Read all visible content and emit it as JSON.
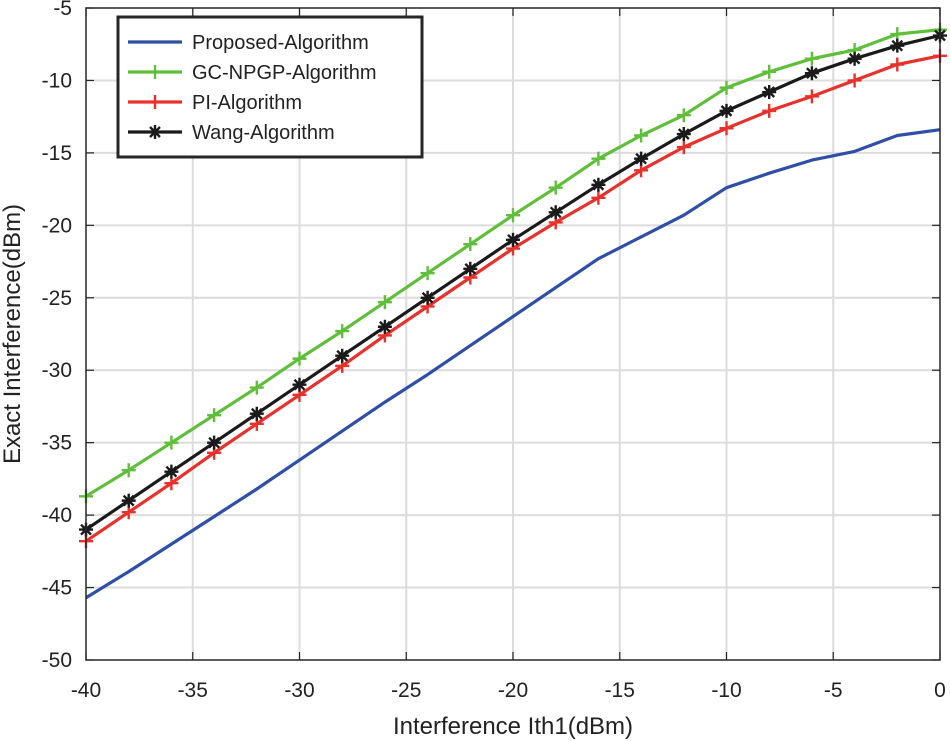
{
  "chart_data": {
    "type": "line",
    "title": "",
    "xlabel": "Interference Ith1(dBm)",
    "ylabel": "Exact Interference(dBm)",
    "xlim": [
      -40,
      0
    ],
    "ylim": [
      -50,
      -5
    ],
    "xticks": [
      -40,
      -35,
      -30,
      -25,
      -20,
      -15,
      -10,
      -5,
      0
    ],
    "xtick_labels": [
      "-40",
      "-35",
      "-30",
      "-25",
      "-20",
      "-15",
      "-10",
      "-5",
      "0"
    ],
    "yticks": [
      -50,
      -45,
      -40,
      -35,
      -30,
      -25,
      -20,
      -15,
      -10,
      -5
    ],
    "ytick_labels": [
      "-50",
      "-45",
      "-40",
      "-35",
      "-30",
      "-25",
      "-20",
      "-15",
      "-10",
      "-5"
    ],
    "grid": true,
    "legend_position": "top-left",
    "series": [
      {
        "name": "Proposed-Algorithm",
        "color": "#2f4ea8",
        "marker": "none",
        "x": [
          -40,
          -38,
          -36,
          -34,
          -32,
          -30,
          -28,
          -26,
          -24,
          -22,
          -20,
          -18,
          -16,
          -14,
          -12,
          -10,
          -8,
          -6,
          -4,
          -2,
          0
        ],
        "values": [
          -45.7,
          -43.9,
          -42.0,
          -40.1,
          -38.2,
          -36.2,
          -34.2,
          -32.2,
          -30.3,
          -28.3,
          -26.3,
          -24.3,
          -22.3,
          -20.8,
          -19.3,
          -17.4,
          -16.4,
          -15.5,
          -14.9,
          -13.8,
          -13.4
        ]
      },
      {
        "name": "GC-NPGP-Algorithm",
        "color": "#5fbf3a",
        "marker": "plus",
        "x": [
          -40,
          -38,
          -36,
          -34,
          -32,
          -30,
          -28,
          -26,
          -24,
          -22,
          -20,
          -18,
          -16,
          -14,
          -12,
          -10,
          -8,
          -6,
          -4,
          -2,
          0
        ],
        "values": [
          -38.7,
          -36.9,
          -35.0,
          -33.1,
          -31.2,
          -29.2,
          -27.3,
          -25.3,
          -23.3,
          -21.3,
          -19.3,
          -17.4,
          -15.4,
          -13.8,
          -12.4,
          -10.5,
          -9.4,
          -8.5,
          -7.9,
          -6.8,
          -6.5
        ]
      },
      {
        "name": "PI-Algorithm",
        "color": "#e8312a",
        "marker": "plus",
        "x": [
          -40,
          -38,
          -36,
          -34,
          -32,
          -30,
          -28,
          -26,
          -24,
          -22,
          -20,
          -18,
          -16,
          -14,
          -12,
          -10,
          -8,
          -6,
          -4,
          -2,
          0
        ],
        "values": [
          -41.8,
          -39.8,
          -37.8,
          -35.7,
          -33.7,
          -31.7,
          -29.7,
          -27.6,
          -25.6,
          -23.6,
          -21.6,
          -19.8,
          -18.1,
          -16.2,
          -14.6,
          -13.3,
          -12.1,
          -11.1,
          -10.0,
          -8.9,
          -8.3
        ]
      },
      {
        "name": "Wang-Algorithm",
        "color": "#1a1a1a",
        "marker": "star",
        "x": [
          -40,
          -38,
          -36,
          -34,
          -32,
          -30,
          -28,
          -26,
          -24,
          -22,
          -20,
          -18,
          -16,
          -14,
          -12,
          -10,
          -8,
          -6,
          -4,
          -2,
          0
        ],
        "values": [
          -41.0,
          -39.0,
          -37.0,
          -35.0,
          -33.0,
          -31.0,
          -29.0,
          -27.0,
          -25.0,
          -23.0,
          -21.0,
          -19.1,
          -17.2,
          -15.4,
          -13.7,
          -12.1,
          -10.8,
          -9.5,
          -8.5,
          -7.6,
          -6.9
        ]
      }
    ]
  }
}
